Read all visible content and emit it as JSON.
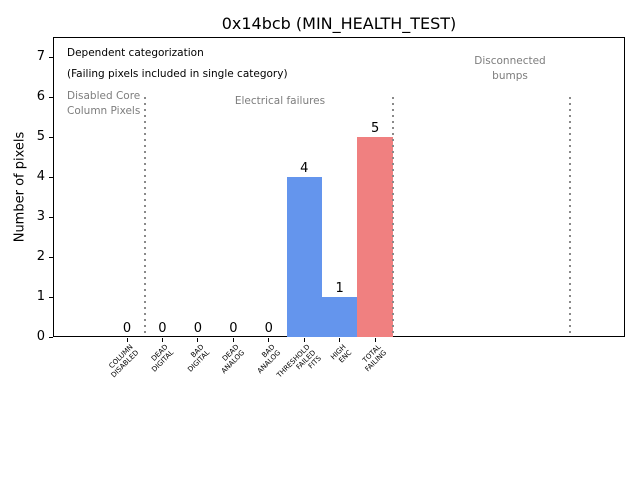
{
  "window": {
    "title": "0x14bcb (MIN_HEALTH_TEST)"
  },
  "chart_data": {
    "type": "bar",
    "title": "0x14bcb (MIN_HEALTH_TEST)",
    "ylabel": "Number of pixels",
    "xlabel": "",
    "categories": [
      "COLUMN\nDISABLED",
      "DEAD\nDIGITAL",
      "BAD\nDIGITAL",
      "DEAD\nANALOG",
      "BAD\nANALOG",
      "THRESHOLD\nFAILED\nFITS",
      "HIGH\nENC",
      "TOTAL\nFAILING"
    ],
    "values": [
      0,
      0,
      0,
      0,
      0,
      4,
      1,
      5
    ],
    "bar_colors": [
      "#6495ed",
      "#6495ed",
      "#6495ed",
      "#6495ed",
      "#6495ed",
      "#6495ed",
      "#6495ed",
      "#f08080"
    ],
    "yticks": [
      0,
      1,
      2,
      3,
      4,
      5,
      6,
      7
    ],
    "ylim": [
      0,
      7.5
    ],
    "grid": false,
    "legend": null,
    "separator_lines": {
      "style": "dotted",
      "color": "#8a8a8a",
      "x_category_positions": [
        0.5,
        7.5,
        12.5
      ],
      "y_top_value": 6
    },
    "annotations": [
      {
        "text": "Dependent categorization",
        "color": "#000000"
      },
      {
        "text": "(Failing pixels included in single category)",
        "color": "#000000"
      },
      {
        "text": "Disabled Core\nColumn Pixels",
        "color": "#7d7d7d"
      },
      {
        "text": "Electrical failures",
        "color": "#7d7d7d"
      },
      {
        "text": "Disconnected\nbumps",
        "color": "#7d7d7d"
      }
    ]
  }
}
